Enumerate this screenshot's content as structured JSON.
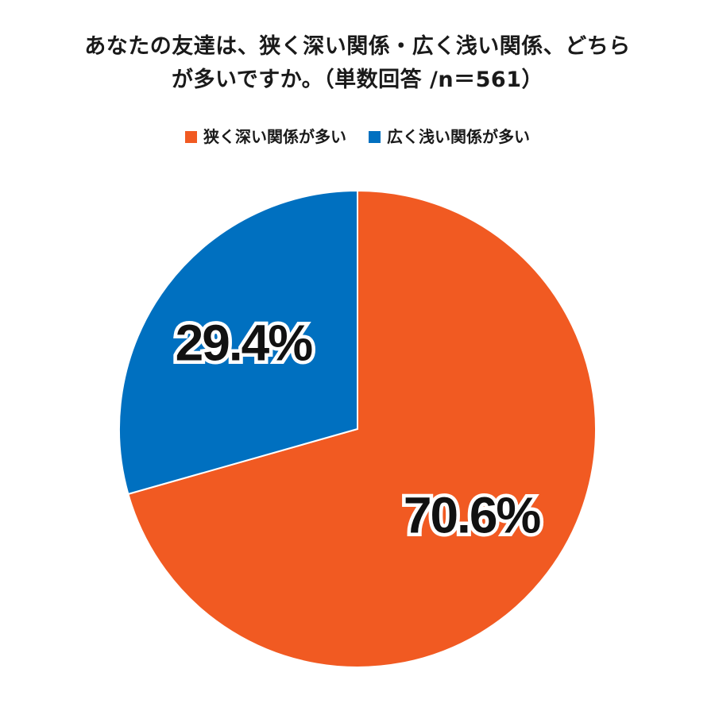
{
  "title_line1": "あなたの友達は、狭く深い関係・広く浅い関係、どちら",
  "title_line2": "が多いですか。（単数回答 /n＝561）",
  "chart_data": {
    "type": "pie",
    "title": "あなたの友達は、狭く深い関係・広く浅い関係、どちらが多いですか。（単数回答 /n＝561）",
    "legend_position": "top",
    "start_angle_deg": 0,
    "direction": "clockwise",
    "slices": [
      {
        "label": "狭く深い関係が多い",
        "value": 70.6,
        "display": "70.6%",
        "color": "#F15A22"
      },
      {
        "label": "広く浅い関係が多い",
        "value": 29.4,
        "display": "29.4%",
        "color": "#0070C0"
      }
    ]
  }
}
